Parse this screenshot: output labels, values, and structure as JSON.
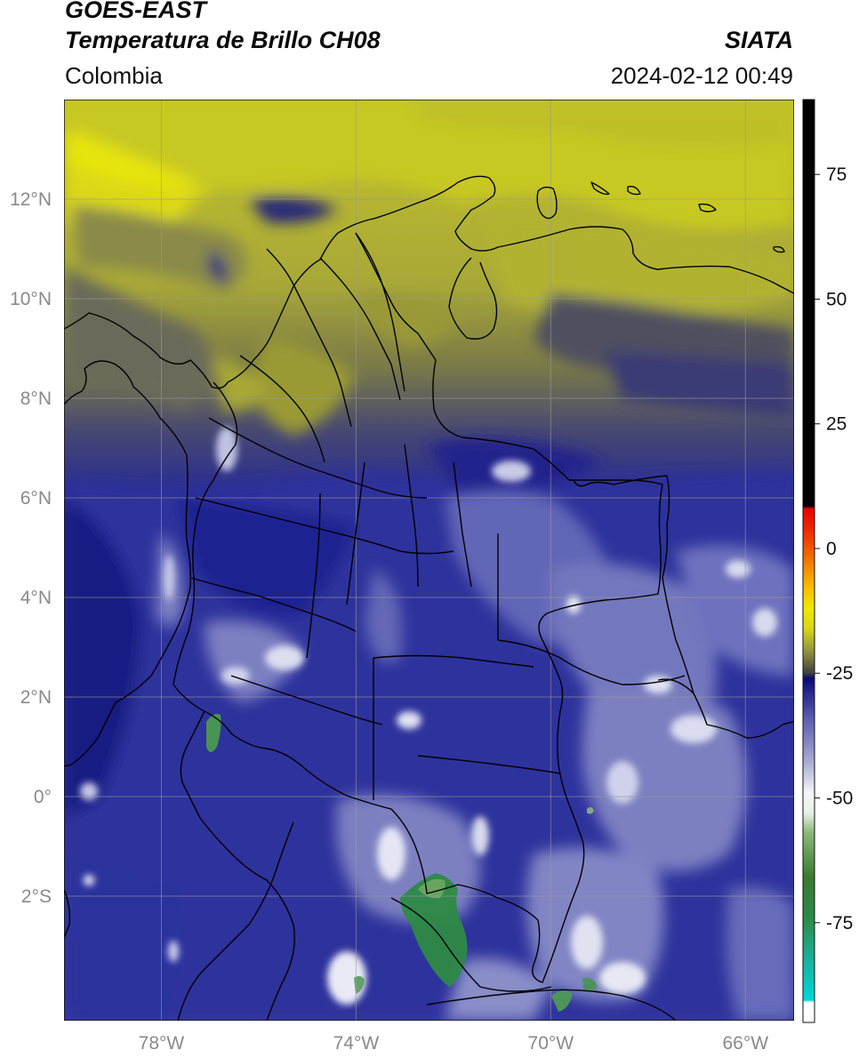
{
  "header": {
    "line1": "GOES-EAST",
    "line2": "Temperatura de Brillo CH08",
    "source": "SIATA",
    "region": "Colombia",
    "datetime": "2024-02-12 00:49"
  },
  "map": {
    "lat_ticks": [
      {
        "label": "12°N",
        "value": 12
      },
      {
        "label": "10°N",
        "value": 10
      },
      {
        "label": "8°N",
        "value": 8
      },
      {
        "label": "6°N",
        "value": 6
      },
      {
        "label": "4°N",
        "value": 4
      },
      {
        "label": "2°N",
        "value": 2
      },
      {
        "label": "0°",
        "value": 0
      },
      {
        "label": "2°S",
        "value": -2
      }
    ],
    "lon_ticks": [
      {
        "label": "78°W",
        "value": -78
      },
      {
        "label": "74°W",
        "value": -74
      },
      {
        "label": "70°W",
        "value": -70
      },
      {
        "label": "66°W",
        "value": -66
      }
    ],
    "lon_range": [
      -80,
      -65
    ],
    "lat_range": [
      -4.5,
      14
    ]
  },
  "colorbar": {
    "range": [
      -95,
      90
    ],
    "ticks": [
      {
        "label": "75",
        "value": 75
      },
      {
        "label": "50",
        "value": 50
      },
      {
        "label": "25",
        "value": 25
      },
      {
        "label": "0",
        "value": 0
      },
      {
        "label": "-25",
        "value": -25
      },
      {
        "label": "-50",
        "value": -50
      },
      {
        "label": "-75",
        "value": -75
      }
    ],
    "stops": [
      {
        "value": -95,
        "color": "#ffffff"
      },
      {
        "value": -91,
        "color": "#ffffff"
      },
      {
        "value": -90.5,
        "color": "#00d8d8"
      },
      {
        "value": -82,
        "color": "#18b098"
      },
      {
        "value": -74,
        "color": "#2a8a48"
      },
      {
        "value": -66,
        "color": "#3a7a2e"
      },
      {
        "value": -57,
        "color": "#88b878"
      },
      {
        "value": -53,
        "color": "#e8f0e8"
      },
      {
        "value": -49,
        "color": "#f5f5f8"
      },
      {
        "value": -42,
        "color": "#a0a4d0"
      },
      {
        "value": -34,
        "color": "#5a5cb0"
      },
      {
        "value": -28,
        "color": "#1c1f88"
      },
      {
        "value": -26,
        "color": "#0a0a70"
      },
      {
        "value": -25,
        "color": "#404040"
      },
      {
        "value": -21,
        "color": "#8c8c40"
      },
      {
        "value": -16,
        "color": "#d8d818"
      },
      {
        "value": -12,
        "color": "#f0e800"
      },
      {
        "value": -8,
        "color": "#f8c000"
      },
      {
        "value": -3,
        "color": "#f08000"
      },
      {
        "value": 3,
        "color": "#f03000"
      },
      {
        "value": 8,
        "color": "#e80000"
      },
      {
        "value": 8.5,
        "color": "#000000"
      },
      {
        "value": 90,
        "color": "#000000"
      }
    ]
  }
}
